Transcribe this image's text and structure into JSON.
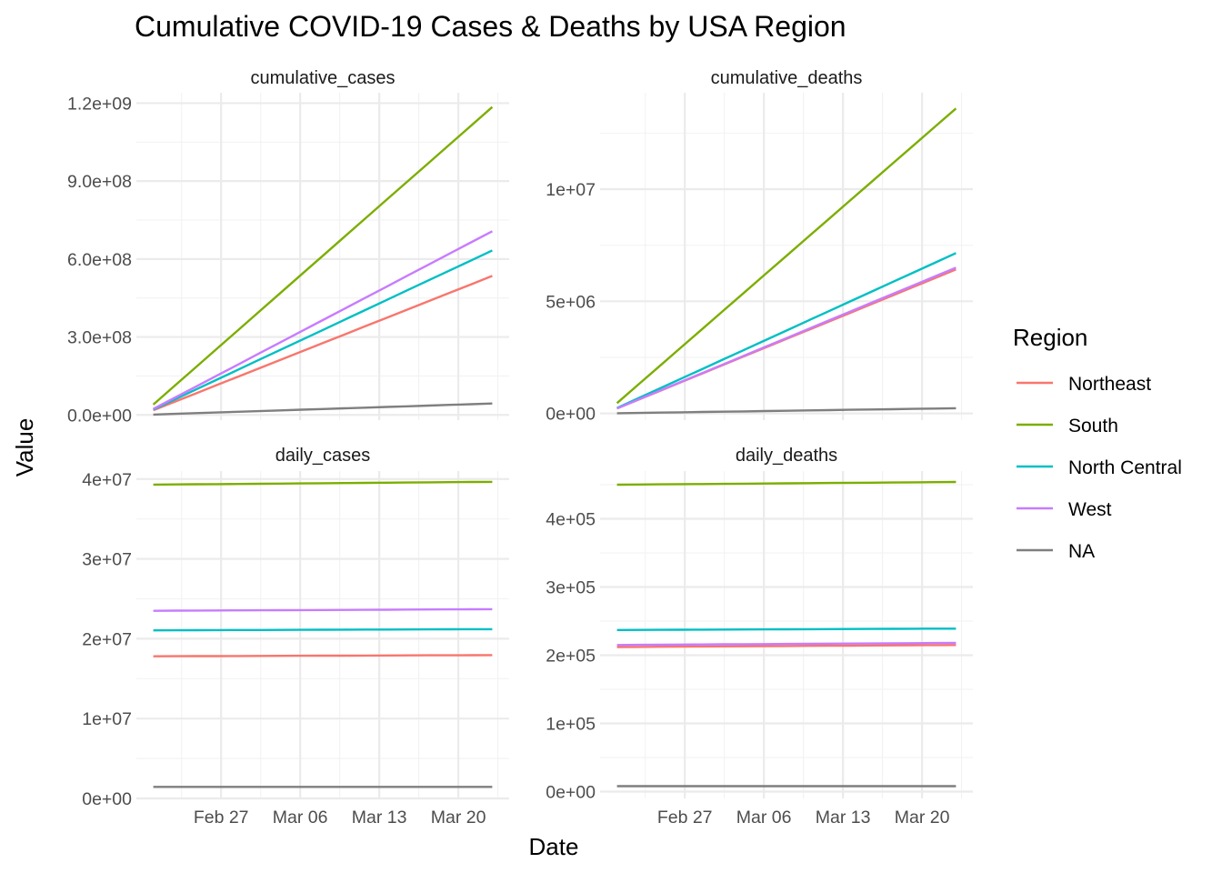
{
  "chart_data": {
    "type": "line",
    "title": "Cumulative COVID-19 Cases & Deaths by USA Region",
    "xlabel": "Date",
    "ylabel": "Value",
    "x_tick_labels": [
      "Feb 27",
      "Mar 06",
      "Mar 13",
      "Mar 20"
    ],
    "legend": {
      "title": "Region",
      "position": "right",
      "entries": [
        {
          "name": "Northeast",
          "color": "#F8766D"
        },
        {
          "name": "South",
          "color": "#7CAE00"
        },
        {
          "name": "North Central",
          "color": "#00BFC4"
        },
        {
          "name": "West",
          "color": "#C77CFF"
        },
        {
          "name": "NA",
          "color": "#7F7F7F"
        }
      ]
    },
    "grid": true,
    "x_dates": [
      "2021-02-21",
      "2021-03-23"
    ],
    "facets": [
      {
        "strip": "cumulative_cases",
        "ylim": [
          -20000000,
          1240000000
        ],
        "y_ticks": [
          0,
          300000000,
          600000000,
          900000000,
          1200000000
        ],
        "y_tick_labels": [
          "0.0e+00",
          "3.0e+08",
          "6.0e+08",
          "9.0e+08",
          "1.2e+09"
        ],
        "series": [
          {
            "name": "Northeast",
            "start": 18000000,
            "end": 535000000
          },
          {
            "name": "South",
            "start": 40000000,
            "end": 1185000000
          },
          {
            "name": "North Central",
            "start": 21000000,
            "end": 633000000
          },
          {
            "name": "West",
            "start": 23000000,
            "end": 707000000
          },
          {
            "name": "NA",
            "start": 1500000,
            "end": 44000000
          }
        ]
      },
      {
        "strip": "cumulative_deaths",
        "ylim": [
          -300000,
          14300000
        ],
        "y_ticks": [
          0,
          5000000,
          10000000
        ],
        "y_tick_labels": [
          "0e+00",
          "5e+06",
          "1e+07"
        ],
        "series": [
          {
            "name": "Northeast",
            "start": 220000,
            "end": 6420000
          },
          {
            "name": "South",
            "start": 460000,
            "end": 13600000
          },
          {
            "name": "North Central",
            "start": 240000,
            "end": 7150000
          },
          {
            "name": "West",
            "start": 220000,
            "end": 6500000
          },
          {
            "name": "NA",
            "start": 8000,
            "end": 230000
          }
        ]
      },
      {
        "strip": "daily_cases",
        "ylim": [
          0,
          41000000
        ],
        "y_ticks": [
          0,
          10000000,
          20000000,
          30000000,
          40000000
        ],
        "y_tick_labels": [
          "0e+00",
          "1e+07",
          "2e+07",
          "3e+07",
          "4e+07"
        ],
        "series": [
          {
            "name": "Northeast",
            "start": 17800000,
            "end": 17950000
          },
          {
            "name": "South",
            "start": 39300000,
            "end": 39650000
          },
          {
            "name": "North Central",
            "start": 21050000,
            "end": 21200000
          },
          {
            "name": "West",
            "start": 23500000,
            "end": 23700000
          },
          {
            "name": "NA",
            "start": 1450000,
            "end": 1450000
          }
        ]
      },
      {
        "strip": "daily_deaths",
        "ylim": [
          -10000,
          470000
        ],
        "y_ticks": [
          0,
          100000,
          200000,
          300000,
          400000
        ],
        "y_tick_labels": [
          "0e+00",
          "1e+05",
          "2e+05",
          "3e+05",
          "4e+05"
        ],
        "series": [
          {
            "name": "Northeast",
            "start": 212000,
            "end": 215000
          },
          {
            "name": "South",
            "start": 450000,
            "end": 454000
          },
          {
            "name": "North Central",
            "start": 237000,
            "end": 239000
          },
          {
            "name": "West",
            "start": 215000,
            "end": 218000
          },
          {
            "name": "NA",
            "start": 8000,
            "end": 8000
          }
        ]
      }
    ]
  }
}
